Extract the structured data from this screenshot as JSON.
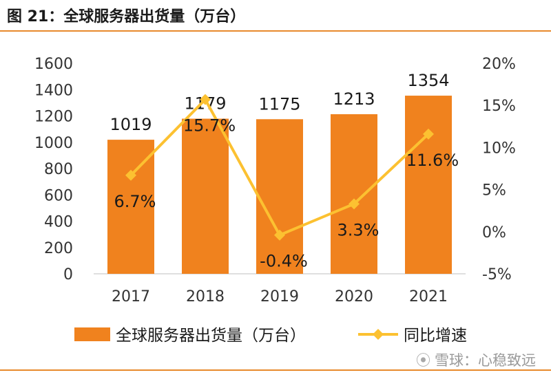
{
  "figure_title": "图 21：全球服务器出货量（万台）",
  "watermark": "雪球：心稳致远",
  "colors": {
    "bar": "#F0821E",
    "line": "#FCC131",
    "rule": "#E8892B",
    "text": "#1a1a1a"
  },
  "chart_data": {
    "type": "bar",
    "categories": [
      "2017",
      "2018",
      "2019",
      "2020",
      "2021"
    ],
    "series": [
      {
        "name": "全球服务器出货量（万台）",
        "type": "bar",
        "axis": "left",
        "values": [
          1019,
          1179,
          1175,
          1213,
          1354
        ],
        "labels": [
          "1019",
          "1179",
          "1175",
          "1213",
          "1354"
        ]
      },
      {
        "name": "同比增速",
        "type": "line",
        "axis": "right",
        "values": [
          6.7,
          15.7,
          -0.4,
          3.3,
          11.6
        ],
        "labels": [
          "6.7%",
          "15.7%",
          "-0.4%",
          "3.3%",
          "11.6%"
        ]
      }
    ],
    "y_left": {
      "min": 0,
      "max": 1600,
      "ticks": [
        "0",
        "200",
        "400",
        "600",
        "800",
        "1000",
        "1200",
        "1400",
        "1600"
      ]
    },
    "y_right": {
      "min": -5,
      "max": 20,
      "ticks": [
        "-5%",
        "0%",
        "5%",
        "10%",
        "15%",
        "20%"
      ]
    },
    "grid": false,
    "legend_position": "bottom"
  }
}
